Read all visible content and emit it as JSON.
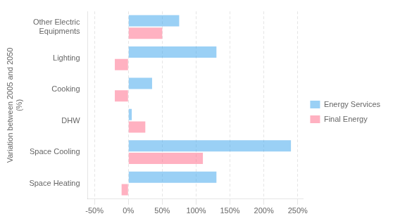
{
  "chart_data": {
    "type": "bar",
    "orientation": "horizontal",
    "ylabel": "Variation between 2005 and 2050\n(%)",
    "categories": [
      "Space Heating",
      "Space Cooling",
      "DHW",
      "Cooking",
      "Lighting",
      "Other Electric\nEquipments"
    ],
    "series": [
      {
        "name": "Energy Services",
        "values": [
          130,
          240,
          5,
          35,
          130,
          75
        ]
      },
      {
        "name": "Final Energy",
        "values": [
          -10,
          110,
          25,
          -20,
          -20,
          50
        ]
      }
    ],
    "xlim": [
      -60,
      258
    ],
    "xticks": [
      {
        "value": -50,
        "label": "-50%"
      },
      {
        "value": 0,
        "label": "0%"
      },
      {
        "value": 50,
        "label": "50%"
      },
      {
        "value": 100,
        "label": "100%"
      },
      {
        "value": 150,
        "label": "150%"
      },
      {
        "value": 200,
        "label": "200%"
      },
      {
        "value": 250,
        "label": "250%"
      }
    ],
    "grid": "x",
    "legend": "right"
  }
}
